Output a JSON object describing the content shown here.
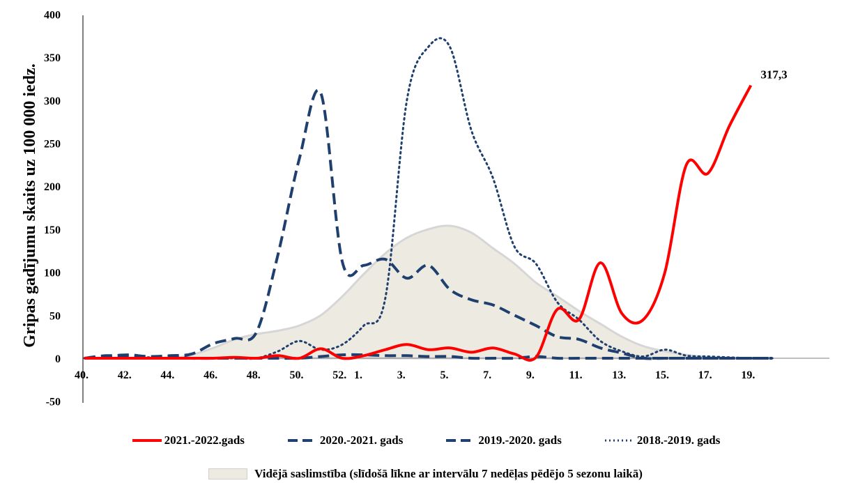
{
  "chart_data": {
    "type": "line",
    "ylabel": "Gripas gadījumu skaits uz 100 000 iedz.",
    "xlabel": "",
    "ylim": [
      -50,
      400
    ],
    "yticks": [
      "400",
      "350",
      "300",
      "250",
      "200",
      "150",
      "100",
      "50",
      "0",
      "-50"
    ],
    "ytick_values": [
      400,
      350,
      300,
      250,
      200,
      150,
      100,
      50,
      0,
      -50
    ],
    "weeks": [
      "40",
      "41",
      "42",
      "43",
      "44",
      "45",
      "46",
      "47",
      "48",
      "49",
      "50",
      "51",
      "52",
      "1",
      "2",
      "3",
      "4",
      "5",
      "6",
      "7",
      "8",
      "9",
      "10",
      "11",
      "12",
      "13",
      "14",
      "15",
      "16",
      "17",
      "18",
      "19",
      "20"
    ],
    "xtick_labels": [
      "40.",
      "42.",
      "44.",
      "46.",
      "48.",
      "50.",
      "52.",
      "1.",
      "3.",
      "5.",
      "7.",
      "9.",
      "11.",
      "13.",
      "15.",
      "17.",
      "19."
    ],
    "xtick_weeks": [
      "40",
      "42",
      "44",
      "46",
      "48",
      "50",
      "52",
      "1",
      "3",
      "5",
      "7",
      "9",
      "11",
      "13",
      "15",
      "17",
      "19"
    ],
    "average_area": {
      "name": "Vidējā saslimstība (slīdošā līkne ar intervālu 7 nedēļas pēdējo 5 sezonu laikā)",
      "values": [
        0,
        0,
        0,
        0,
        0,
        4,
        12,
        22,
        28,
        32,
        38,
        50,
        72,
        98,
        122,
        140,
        150,
        154,
        146,
        128,
        110,
        88,
        72,
        55,
        40,
        25,
        14,
        8,
        4,
        1,
        0,
        0,
        0
      ]
    },
    "series": [
      {
        "name": "2021.-2022.gads",
        "style": "solid",
        "color": "#ff0000",
        "values": [
          0,
          0,
          0,
          0,
          0,
          0,
          0,
          1,
          0,
          3,
          0,
          11,
          0,
          3,
          10,
          16,
          10,
          12,
          7,
          12,
          5,
          1,
          57,
          45,
          111,
          52,
          45,
          100,
          225,
          215,
          270,
          317.3
        ],
        "end_label": "317,3"
      },
      {
        "name": "2020.-2021. gads",
        "style": "dash-dense",
        "color": "#1f3f6f",
        "values": [
          0,
          3,
          2,
          0,
          2,
          0,
          0,
          0,
          0,
          0,
          0,
          2,
          4,
          4,
          3,
          3,
          2,
          2,
          0,
          0,
          0,
          2,
          0,
          0,
          0,
          0,
          0,
          0,
          0,
          0,
          0,
          0,
          0
        ]
      },
      {
        "name": "2019.-2020. gads",
        "style": "dash",
        "color": "#1f3f6f",
        "values": [
          0,
          2,
          4,
          2,
          3,
          5,
          17,
          23,
          30,
          120,
          232,
          308,
          112,
          108,
          115,
          93,
          108,
          80,
          68,
          62,
          50,
          38,
          25,
          22,
          12,
          6,
          0,
          0,
          0,
          0,
          0,
          0,
          0
        ]
      },
      {
        "name": "2018.-2019. gads",
        "style": "dot",
        "color": "#1f3f6f",
        "values": [
          0,
          0,
          0,
          1,
          0,
          0,
          0,
          0,
          0,
          8,
          20,
          10,
          16,
          38,
          70,
          300,
          362,
          362,
          265,
          210,
          130,
          110,
          65,
          45,
          20,
          8,
          2,
          10,
          3,
          2,
          1,
          0,
          0
        ]
      }
    ]
  }
}
